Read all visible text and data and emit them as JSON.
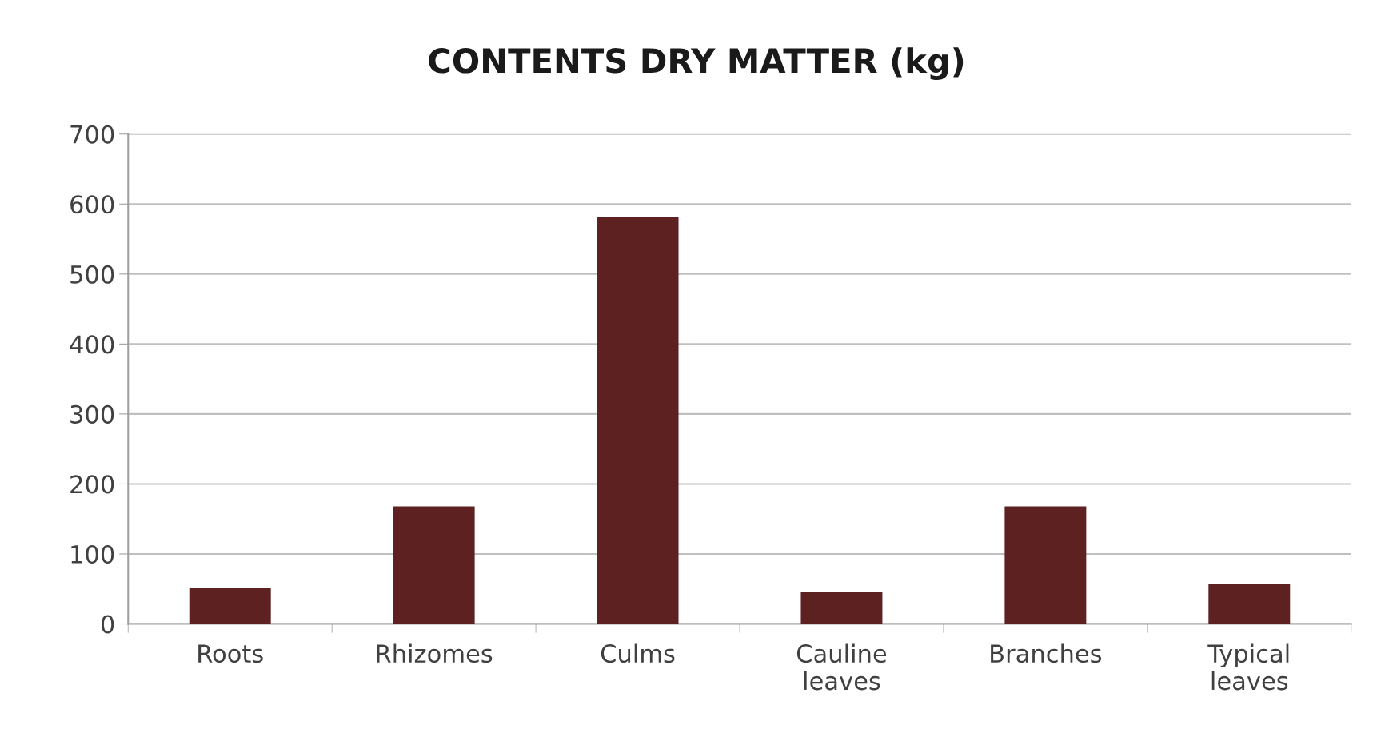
{
  "chart_data": {
    "type": "bar",
    "title": "CONTENTS DRY MATTER (kg)",
    "categories": [
      "Roots",
      "Rhizomes",
      "Culms",
      "Cauline\nleaves",
      "Branches",
      "Typical\nleaves"
    ],
    "values": [
      52,
      168,
      582,
      46,
      168,
      57
    ],
    "color": "#5e2121",
    "ylim": [
      0,
      700
    ],
    "yticks": [
      0,
      100,
      200,
      300,
      400,
      500,
      600,
      700
    ],
    "grid": "y"
  }
}
